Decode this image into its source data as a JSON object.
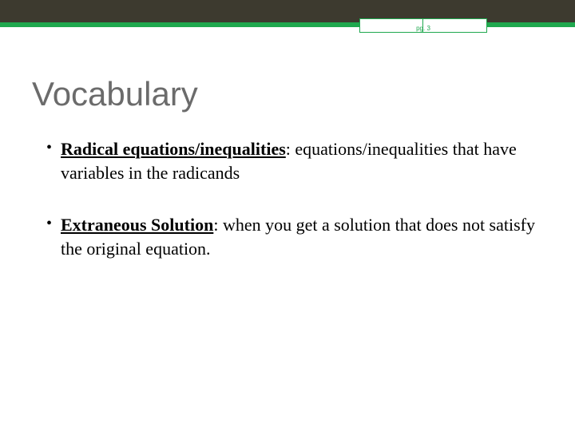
{
  "header": {
    "top_bar_color": "#3d3a2f",
    "accent_color": "#1fa84e",
    "page_label": "pg. 3"
  },
  "slide": {
    "title": "Vocabulary",
    "title_color": "#6b6b6b",
    "title_fontsize": 42,
    "body_fontsize": 22,
    "bullets": [
      {
        "term": "Radical equations/inequalities",
        "definition": ": equations/inequalities that have variables in the radicands"
      },
      {
        "term": "Extraneous Solution",
        "definition": ": when you get a solution that does not satisfy the original equation."
      }
    ]
  }
}
